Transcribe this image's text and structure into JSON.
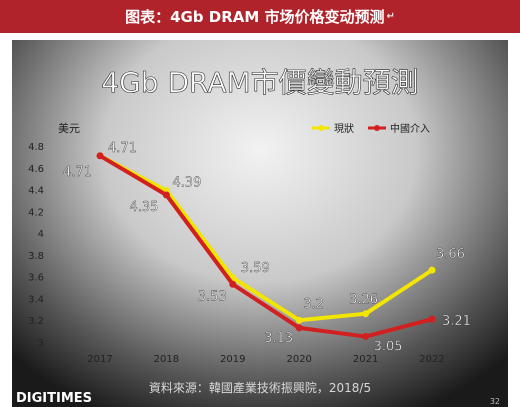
{
  "caption": {
    "text": "图表：4Gb DRAM 市场价格变动预测",
    "return_mark": "↵"
  },
  "chart_data": {
    "type": "line",
    "title": "4Gb DRAM市價變動預測",
    "ylabel": "美元",
    "xlabel": "",
    "categories": [
      "2017",
      "2018",
      "2019",
      "2020",
      "2021",
      "2022"
    ],
    "ylim": [
      3,
      4.8
    ],
    "yticks": [
      "4.8",
      "4.6",
      "4.4",
      "4.2",
      "4",
      "3.8",
      "3.6",
      "3.4",
      "3.2",
      "3"
    ],
    "grid": false,
    "legend_position": "top-right",
    "series": [
      {
        "name": "現狀",
        "color": "#f2e600",
        "values": [
          4.71,
          4.39,
          3.59,
          3.2,
          3.26,
          3.66
        ],
        "labels": [
          "4.71",
          "4.39",
          "3.59",
          "3.2",
          "3.26",
          "3.66"
        ]
      },
      {
        "name": "中國介入",
        "color": "#d21f1f",
        "values": [
          4.71,
          4.35,
          3.53,
          3.13,
          3.05,
          3.21
        ],
        "labels": [
          "4.71",
          "4.35",
          "3.53",
          "3.13",
          "3.05",
          "3.21"
        ]
      }
    ]
  },
  "footer": {
    "logo": "DIGITIMES",
    "source": "資料來源：韓國產業技術振興院，2018/5",
    "page_number": "32"
  }
}
